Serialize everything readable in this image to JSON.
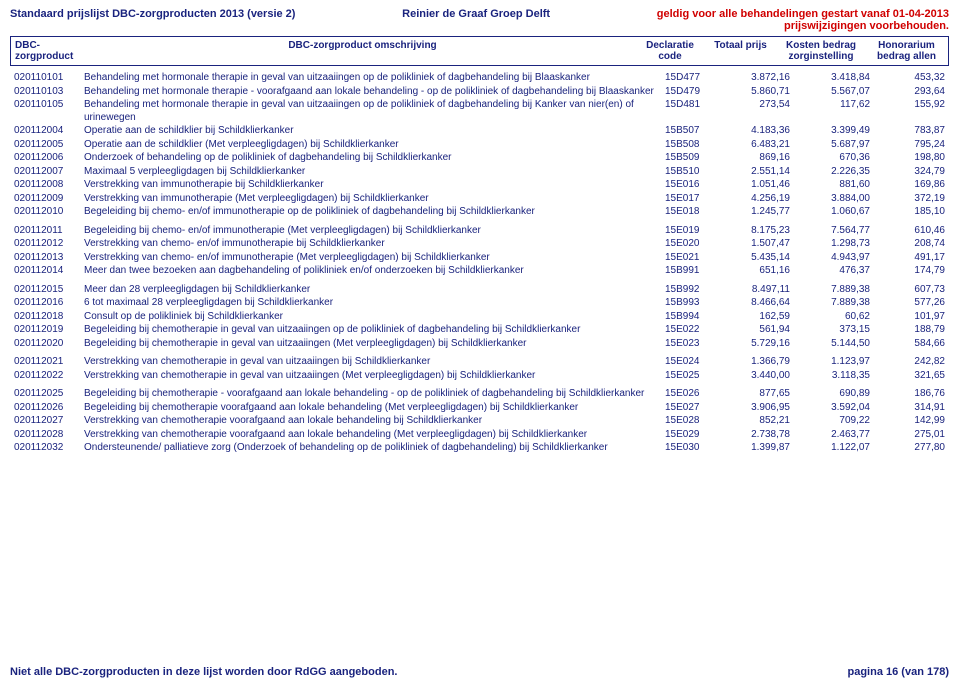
{
  "header": {
    "left": "Standaard prijslijst DBC-zorgproducten 2013 (versie 2)",
    "mid": "Reinier de Graaf Groep Delft",
    "right1": "geldig voor alle behandelingen gestart vanaf 01-04-2013",
    "right2": "prijswijzigingen voorbehouden."
  },
  "cols": {
    "code": "DBC-zorgproduct",
    "desc": "DBC-zorgproduct omschrijving",
    "decl1": "Declaratie",
    "decl2": "code",
    "prijs": "Totaal prijs",
    "kosten1": "Kosten bedrag",
    "kosten2": "zorginstelling",
    "hon1": "Honorarium",
    "hon2": "bedrag allen"
  },
  "rows": [
    {
      "g": 0,
      "code": "020110101",
      "desc": "Behandeling met hormonale therapie in geval van uitzaaiingen op de polikliniek of dagbehandeling bij Blaaskanker",
      "decl": "15D477",
      "prijs": "3.872,16",
      "kosten": "3.418,84",
      "hon": "453,32"
    },
    {
      "g": 0,
      "code": "020110103",
      "desc": "Behandeling met hormonale therapie - voorafgaand aan lokale behandeling - op de polikliniek of dagbehandeling bij Blaaskanker",
      "decl": "15D479",
      "prijs": "5.860,71",
      "kosten": "5.567,07",
      "hon": "293,64"
    },
    {
      "g": 0,
      "code": "020110105",
      "desc": "Behandeling met hormonale therapie in geval van uitzaaiingen op de polikliniek of dagbehandeling bij Kanker van nier(en) of urinewegen",
      "decl": "15D481",
      "prijs": "273,54",
      "kosten": "117,62",
      "hon": "155,92"
    },
    {
      "g": 0,
      "code": "020112004",
      "desc": "Operatie aan de schildklier bij Schildklierkanker",
      "decl": "15B507",
      "prijs": "4.183,36",
      "kosten": "3.399,49",
      "hon": "783,87"
    },
    {
      "g": 0,
      "code": "020112005",
      "desc": "Operatie aan de schildklier (Met verpleegligdagen) bij Schildklierkanker",
      "decl": "15B508",
      "prijs": "6.483,21",
      "kosten": "5.687,97",
      "hon": "795,24"
    },
    {
      "g": 0,
      "code": "020112006",
      "desc": "Onderzoek of behandeling op de polikliniek of dagbehandeling bij Schildklierkanker",
      "decl": "15B509",
      "prijs": "869,16",
      "kosten": "670,36",
      "hon": "198,80"
    },
    {
      "g": 0,
      "code": "020112007",
      "desc": "Maximaal 5 verpleegligdagen bij Schildklierkanker",
      "decl": "15B510",
      "prijs": "2.551,14",
      "kosten": "2.226,35",
      "hon": "324,79"
    },
    {
      "g": 0,
      "code": "020112008",
      "desc": "Verstrekking van immunotherapie bij Schildklierkanker",
      "decl": "15E016",
      "prijs": "1.051,46",
      "kosten": "881,60",
      "hon": "169,86"
    },
    {
      "g": 0,
      "code": "020112009",
      "desc": "Verstrekking van immunotherapie (Met verpleegligdagen) bij Schildklierkanker",
      "decl": "15E017",
      "prijs": "4.256,19",
      "kosten": "3.884,00",
      "hon": "372,19"
    },
    {
      "g": 0,
      "code": "020112010",
      "desc": "Begeleiding bij chemo- en/of immunotherapie op de polikliniek of dagbehandeling bij Schildklierkanker",
      "decl": "15E018",
      "prijs": "1.245,77",
      "kosten": "1.060,67",
      "hon": "185,10"
    },
    {
      "g": 1,
      "code": "020112011",
      "desc": "Begeleiding bij chemo- en/of immunotherapie (Met verpleegligdagen) bij Schildklierkanker",
      "decl": "15E019",
      "prijs": "8.175,23",
      "kosten": "7.564,77",
      "hon": "610,46"
    },
    {
      "g": 0,
      "code": "020112012",
      "desc": "Verstrekking van chemo- en/of immunotherapie bij Schildklierkanker",
      "decl": "15E020",
      "prijs": "1.507,47",
      "kosten": "1.298,73",
      "hon": "208,74"
    },
    {
      "g": 0,
      "code": "020112013",
      "desc": "Verstrekking van chemo- en/of immunotherapie (Met verpleegligdagen) bij Schildklierkanker",
      "decl": "15E021",
      "prijs": "5.435,14",
      "kosten": "4.943,97",
      "hon": "491,17"
    },
    {
      "g": 0,
      "code": "020112014",
      "desc": "Meer dan twee bezoeken aan dagbehandeling of polikliniek en/of onderzoeken bij Schildklierkanker",
      "decl": "15B991",
      "prijs": "651,16",
      "kosten": "476,37",
      "hon": "174,79"
    },
    {
      "g": 1,
      "code": "020112015",
      "desc": "Meer dan 28 verpleegligdagen bij Schildklierkanker",
      "decl": "15B992",
      "prijs": "8.497,11",
      "kosten": "7.889,38",
      "hon": "607,73"
    },
    {
      "g": 0,
      "code": "020112016",
      "desc": "6 tot maximaal 28 verpleegligdagen bij Schildklierkanker",
      "decl": "15B993",
      "prijs": "8.466,64",
      "kosten": "7.889,38",
      "hon": "577,26"
    },
    {
      "g": 0,
      "code": "020112018",
      "desc": "Consult op de polikliniek bij Schildklierkanker",
      "decl": "15B994",
      "prijs": "162,59",
      "kosten": "60,62",
      "hon": "101,97"
    },
    {
      "g": 0,
      "code": "020112019",
      "desc": "Begeleiding bij chemotherapie in geval van uitzaaiingen op de polikliniek of dagbehandeling bij Schildklierkanker",
      "decl": "15E022",
      "prijs": "561,94",
      "kosten": "373,15",
      "hon": "188,79"
    },
    {
      "g": 0,
      "code": "020112020",
      "desc": "Begeleiding bij chemotherapie in geval van uitzaaiingen (Met verpleegligdagen) bij Schildklierkanker",
      "decl": "15E023",
      "prijs": "5.729,16",
      "kosten": "5.144,50",
      "hon": "584,66"
    },
    {
      "g": 1,
      "code": "020112021",
      "desc": "Verstrekking van chemotherapie in geval van uitzaaiingen bij Schildklierkanker",
      "decl": "15E024",
      "prijs": "1.366,79",
      "kosten": "1.123,97",
      "hon": "242,82"
    },
    {
      "g": 0,
      "code": "020112022",
      "desc": "Verstrekking van chemotherapie in geval van uitzaaiingen (Met verpleegligdagen) bij Schildklierkanker",
      "decl": "15E025",
      "prijs": "3.440,00",
      "kosten": "3.118,35",
      "hon": "321,65"
    },
    {
      "g": 1,
      "code": "020112025",
      "desc": "Begeleiding bij chemotherapie - voorafgaand aan lokale behandeling - op de polikliniek of dagbehandeling bij Schildklierkanker",
      "decl": "15E026",
      "prijs": "877,65",
      "kosten": "690,89",
      "hon": "186,76"
    },
    {
      "g": 0,
      "code": "020112026",
      "desc": "Begeleiding bij chemotherapie voorafgaand aan lokale behandeling (Met verpleegligdagen) bij Schildklierkanker",
      "decl": "15E027",
      "prijs": "3.906,95",
      "kosten": "3.592,04",
      "hon": "314,91"
    },
    {
      "g": 0,
      "code": "020112027",
      "desc": "Verstrekking van chemotherapie voorafgaand aan lokale behandeling bij Schildklierkanker",
      "decl": "15E028",
      "prijs": "852,21",
      "kosten": "709,22",
      "hon": "142,99"
    },
    {
      "g": 0,
      "code": "020112028",
      "desc": "Verstrekking van chemotherapie voorafgaand aan lokale behandeling (Met verpleegligdagen) bij Schildklierkanker",
      "decl": "15E029",
      "prijs": "2.738,78",
      "kosten": "2.463,77",
      "hon": "275,01"
    },
    {
      "g": 0,
      "code": "020112032",
      "desc": "Ondersteunende/ palliatieve zorg (Onderzoek of behandeling op de polikliniek of dagbehandeling) bij Schildklierkanker",
      "decl": "15E030",
      "prijs": "1.399,87",
      "kosten": "1.122,07",
      "hon": "277,80"
    }
  ],
  "footer": {
    "left": "Niet alle DBC-zorgproducten in deze lijst worden door RdGG aangeboden.",
    "right": "pagina 16 (van 178)"
  }
}
